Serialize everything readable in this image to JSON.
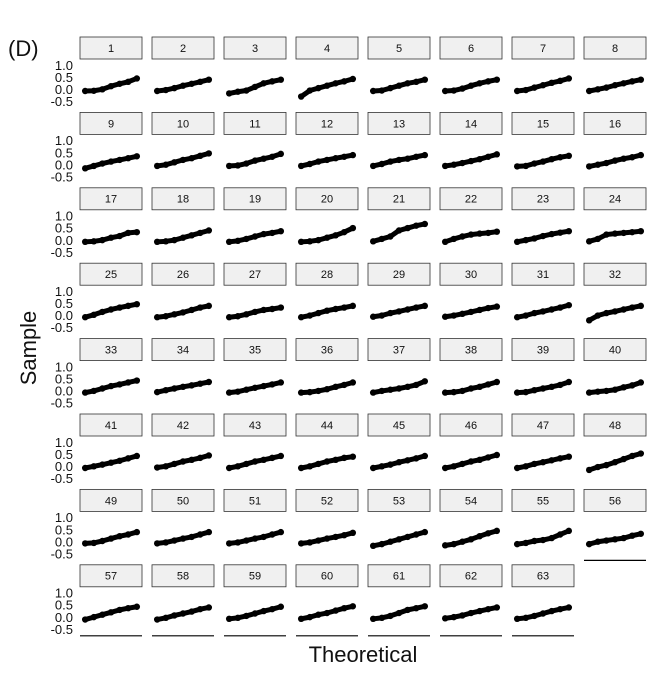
{
  "chart_data": {
    "type": "facet-qq",
    "panel_label": "(D)",
    "ylabel": "Sample",
    "xlabel": "Theoretical",
    "color": "#000000",
    "strip_color": "#f0f0f0",
    "ylim": [
      -0.6,
      1.1
    ],
    "yticks": [
      {
        "value": 1.0,
        "label": "1.0"
      },
      0.5,
      {
        "value": 0.0,
        "label": "0.0"
      },
      -0.5
    ],
    "xlim": [
      -2.4,
      2.4
    ],
    "x": [
      -2,
      -1.33,
      -0.67,
      0,
      0.67,
      1.33,
      2
    ],
    "columns": 8,
    "series": [
      {
        "name": "1",
        "values": [
          -0.02,
          -0.01,
          0.05,
          0.18,
          0.28,
          0.36,
          0.5
        ]
      },
      {
        "name": "2",
        "values": [
          -0.02,
          0.02,
          0.1,
          0.2,
          0.28,
          0.36,
          0.45
        ]
      },
      {
        "name": "3",
        "values": [
          -0.12,
          -0.05,
          0.0,
          0.15,
          0.3,
          0.38,
          0.45
        ]
      },
      {
        "name": "4",
        "values": [
          -0.25,
          0.0,
          0.1,
          0.2,
          0.3,
          0.38,
          0.48
        ]
      },
      {
        "name": "5",
        "values": [
          -0.02,
          0.0,
          0.1,
          0.2,
          0.3,
          0.36,
          0.45
        ]
      },
      {
        "name": "6",
        "values": [
          -0.02,
          0.0,
          0.08,
          0.2,
          0.3,
          0.38,
          0.45
        ]
      },
      {
        "name": "7",
        "values": [
          -0.02,
          0.02,
          0.12,
          0.22,
          0.32,
          0.4,
          0.5
        ]
      },
      {
        "name": "8",
        "values": [
          -0.02,
          0.05,
          0.12,
          0.22,
          0.3,
          0.38,
          0.45
        ]
      },
      {
        "name": "9",
        "values": [
          -0.1,
          0.0,
          0.1,
          0.18,
          0.25,
          0.32,
          0.4
        ]
      },
      {
        "name": "10",
        "values": [
          0.0,
          0.05,
          0.15,
          0.25,
          0.32,
          0.42,
          0.52
        ]
      },
      {
        "name": "11",
        "values": [
          0.0,
          0.02,
          0.1,
          0.22,
          0.3,
          0.38,
          0.5
        ]
      },
      {
        "name": "12",
        "values": [
          0.0,
          0.08,
          0.18,
          0.25,
          0.32,
          0.38,
          0.45
        ]
      },
      {
        "name": "13",
        "values": [
          0.0,
          0.08,
          0.18,
          0.25,
          0.3,
          0.38,
          0.45
        ]
      },
      {
        "name": "14",
        "values": [
          0.0,
          0.05,
          0.12,
          0.2,
          0.28,
          0.38,
          0.48
        ]
      },
      {
        "name": "15",
        "values": [
          -0.02,
          0.0,
          0.1,
          0.18,
          0.28,
          0.36,
          0.42
        ]
      },
      {
        "name": "16",
        "values": [
          -0.02,
          0.05,
          0.12,
          0.22,
          0.3,
          0.36,
          0.45
        ]
      },
      {
        "name": "17",
        "values": [
          -0.02,
          0.0,
          0.05,
          0.15,
          0.22,
          0.35,
          0.38
        ]
      },
      {
        "name": "18",
        "values": [
          -0.02,
          0.0,
          0.05,
          0.15,
          0.25,
          0.35,
          0.45
        ]
      },
      {
        "name": "19",
        "values": [
          -0.02,
          0.02,
          0.1,
          0.2,
          0.3,
          0.35,
          0.42
        ]
      },
      {
        "name": "20",
        "values": [
          -0.02,
          0.0,
          0.05,
          0.15,
          0.25,
          0.38,
          0.55
        ]
      },
      {
        "name": "21",
        "values": [
          0.0,
          0.1,
          0.2,
          0.45,
          0.55,
          0.65,
          0.72
        ]
      },
      {
        "name": "22",
        "values": [
          -0.02,
          0.1,
          0.2,
          0.28,
          0.32,
          0.35,
          0.4
        ]
      },
      {
        "name": "23",
        "values": [
          -0.02,
          0.05,
          0.12,
          0.22,
          0.3,
          0.36,
          0.42
        ]
      },
      {
        "name": "24",
        "values": [
          0.0,
          0.1,
          0.28,
          0.32,
          0.35,
          0.38,
          0.42
        ]
      },
      {
        "name": "25",
        "values": [
          -0.02,
          0.08,
          0.2,
          0.3,
          0.38,
          0.45,
          0.52
        ]
      },
      {
        "name": "26",
        "values": [
          -0.02,
          0.02,
          0.1,
          0.18,
          0.28,
          0.38,
          0.45
        ]
      },
      {
        "name": "27",
        "values": [
          -0.02,
          0.02,
          0.1,
          0.2,
          0.28,
          0.32,
          0.38
        ]
      },
      {
        "name": "28",
        "values": [
          -0.02,
          0.05,
          0.15,
          0.25,
          0.32,
          0.38,
          0.45
        ]
      },
      {
        "name": "29",
        "values": [
          0.0,
          0.05,
          0.15,
          0.22,
          0.3,
          0.38,
          0.45
        ]
      },
      {
        "name": "30",
        "values": [
          0.0,
          0.05,
          0.12,
          0.2,
          0.28,
          0.36,
          0.42
        ]
      },
      {
        "name": "31",
        "values": [
          -0.02,
          0.05,
          0.15,
          0.22,
          0.3,
          0.38,
          0.48
        ]
      },
      {
        "name": "32",
        "values": [
          -0.15,
          0.05,
          0.15,
          0.22,
          0.3,
          0.38,
          0.45
        ]
      },
      {
        "name": "33",
        "values": [
          -0.02,
          0.05,
          0.15,
          0.25,
          0.32,
          0.4,
          0.48
        ]
      },
      {
        "name": "34",
        "values": [
          0.0,
          0.08,
          0.15,
          0.22,
          0.28,
          0.35,
          0.42
        ]
      },
      {
        "name": "35",
        "values": [
          -0.02,
          0.02,
          0.1,
          0.18,
          0.25,
          0.32,
          0.4
        ]
      },
      {
        "name": "36",
        "values": [
          -0.02,
          0.0,
          0.05,
          0.12,
          0.22,
          0.3,
          0.4
        ]
      },
      {
        "name": "37",
        "values": [
          -0.02,
          0.05,
          0.1,
          0.15,
          0.22,
          0.3,
          0.45
        ]
      },
      {
        "name": "38",
        "values": [
          -0.02,
          0.0,
          0.05,
          0.15,
          0.22,
          0.32,
          0.42
        ]
      },
      {
        "name": "39",
        "values": [
          -0.02,
          0.0,
          0.08,
          0.15,
          0.22,
          0.3,
          0.42
        ]
      },
      {
        "name": "40",
        "values": [
          -0.02,
          0.02,
          0.05,
          0.1,
          0.2,
          0.28,
          0.4
        ]
      },
      {
        "name": "41",
        "values": [
          -0.02,
          0.05,
          0.12,
          0.2,
          0.28,
          0.38,
          0.48
        ]
      },
      {
        "name": "42",
        "values": [
          0.0,
          0.05,
          0.15,
          0.25,
          0.32,
          0.4,
          0.5
        ]
      },
      {
        "name": "43",
        "values": [
          -0.02,
          0.05,
          0.15,
          0.25,
          0.32,
          0.4,
          0.48
        ]
      },
      {
        "name": "44",
        "values": [
          -0.02,
          0.05,
          0.15,
          0.25,
          0.32,
          0.4,
          0.45
        ]
      },
      {
        "name": "45",
        "values": [
          -0.02,
          0.05,
          0.12,
          0.22,
          0.3,
          0.38,
          0.48
        ]
      },
      {
        "name": "46",
        "values": [
          -0.02,
          0.05,
          0.15,
          0.25,
          0.32,
          0.42,
          0.52
        ]
      },
      {
        "name": "47",
        "values": [
          -0.02,
          0.05,
          0.15,
          0.22,
          0.3,
          0.38,
          0.45
        ]
      },
      {
        "name": "48",
        "values": [
          -0.1,
          0.02,
          0.1,
          0.22,
          0.35,
          0.48,
          0.58
        ]
      },
      {
        "name": "49",
        "values": [
          -0.02,
          0.0,
          0.08,
          0.18,
          0.28,
          0.35,
          0.45
        ]
      },
      {
        "name": "50",
        "values": [
          -0.02,
          0.02,
          0.1,
          0.18,
          0.25,
          0.35,
          0.45
        ]
      },
      {
        "name": "51",
        "values": [
          -0.02,
          0.02,
          0.1,
          0.18,
          0.25,
          0.35,
          0.45
        ]
      },
      {
        "name": "52",
        "values": [
          -0.02,
          0.02,
          0.1,
          0.18,
          0.25,
          0.32,
          0.42
        ]
      },
      {
        "name": "53",
        "values": [
          -0.12,
          -0.05,
          0.05,
          0.15,
          0.25,
          0.35,
          0.45
        ]
      },
      {
        "name": "54",
        "values": [
          -0.1,
          -0.05,
          0.05,
          0.15,
          0.28,
          0.4,
          0.5
        ]
      },
      {
        "name": "55",
        "values": [
          -0.05,
          0.0,
          0.08,
          0.12,
          0.2,
          0.35,
          0.5
        ]
      },
      {
        "name": "56",
        "values": [
          -0.05,
          0.05,
          0.1,
          0.15,
          0.2,
          0.3,
          0.38
        ]
      },
      {
        "name": "57",
        "values": [
          -0.05,
          0.05,
          0.15,
          0.25,
          0.35,
          0.42,
          0.48
        ]
      },
      {
        "name": "58",
        "values": [
          -0.05,
          0.02,
          0.12,
          0.2,
          0.28,
          0.38,
          0.45
        ]
      },
      {
        "name": "59",
        "values": [
          -0.02,
          0.02,
          0.1,
          0.2,
          0.3,
          0.38,
          0.48
        ]
      },
      {
        "name": "60",
        "values": [
          -0.02,
          0.05,
          0.15,
          0.22,
          0.32,
          0.42,
          0.5
        ]
      },
      {
        "name": "61",
        "values": [
          -0.02,
          0.02,
          0.1,
          0.22,
          0.35,
          0.42,
          0.5
        ]
      },
      {
        "name": "62",
        "values": [
          0.0,
          0.05,
          0.12,
          0.22,
          0.3,
          0.38,
          0.45
        ]
      },
      {
        "name": "63",
        "values": [
          -0.02,
          0.02,
          0.1,
          0.2,
          0.3,
          0.38,
          0.45
        ]
      }
    ]
  }
}
